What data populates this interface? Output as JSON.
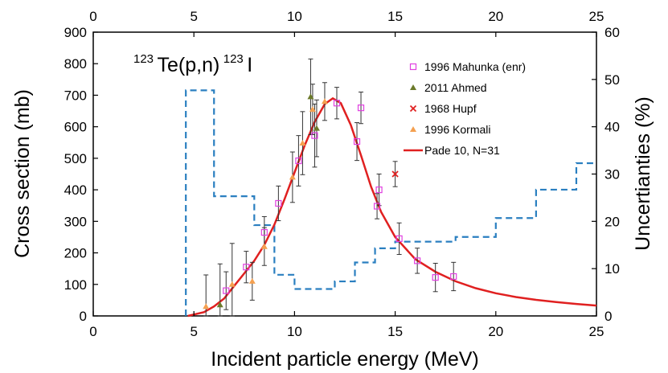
{
  "chart_data": {
    "type": "scatter",
    "title": "",
    "reaction_label": {
      "mass_target": "123",
      "target": "Te(p,n)",
      "mass_product": "123",
      "product": "I"
    },
    "xlabel": "Incident particle energy (MeV)",
    "ylabel": "Cross section (mb)",
    "y2label": "Uncertianties (%)",
    "xlim": [
      0,
      25
    ],
    "ylim": [
      0,
      900
    ],
    "y2lim": [
      0,
      60
    ],
    "xticks": [
      "0",
      "5",
      "10",
      "15",
      "20",
      "25"
    ],
    "yticks": [
      "0",
      "100",
      "200",
      "300",
      "400",
      "500",
      "600",
      "700",
      "800",
      "900"
    ],
    "y2ticks": [
      "0",
      "10",
      "20",
      "30",
      "40",
      "50",
      "60"
    ],
    "legend_position": "top-right",
    "series": [
      {
        "name": "1996 Mahunka (enr)",
        "marker": "open-square",
        "color": "#e040e0",
        "points": [
          {
            "x": 6.6,
            "y": 80,
            "err": 60
          },
          {
            "x": 7.6,
            "y": 155,
            "err": 50
          },
          {
            "x": 8.5,
            "y": 265,
            "err": 50
          },
          {
            "x": 9.2,
            "y": 357,
            "err": 55
          },
          {
            "x": 10.2,
            "y": 492,
            "err": 80
          },
          {
            "x": 11.0,
            "y": 572,
            "err": 100
          },
          {
            "x": 12.1,
            "y": 675,
            "err": 50
          },
          {
            "x": 13.1,
            "y": 553,
            "err": 60
          },
          {
            "x": 13.3,
            "y": 660,
            "err": 50
          },
          {
            "x": 14.2,
            "y": 400,
            "err": 50
          },
          {
            "x": 14.1,
            "y": 348,
            "err": 40
          },
          {
            "x": 15.2,
            "y": 245,
            "err": 50
          },
          {
            "x": 16.1,
            "y": 175,
            "err": 40
          },
          {
            "x": 17.0,
            "y": 122,
            "err": 45
          },
          {
            "x": 17.9,
            "y": 125,
            "err": 45
          }
        ]
      },
      {
        "name": "2011 Ahmed",
        "marker": "triangle",
        "color": "#6b7a2a",
        "points": [
          {
            "x": 6.3,
            "y": 35,
            "err": 130
          },
          {
            "x": 10.8,
            "y": 695,
            "err": 120
          },
          {
            "x": 11.1,
            "y": 595,
            "err": 90
          }
        ]
      },
      {
        "name": "1968 Hupf",
        "marker": "cross",
        "color": "#e02020",
        "points": [
          {
            "x": 15.0,
            "y": 450,
            "err": 40
          }
        ]
      },
      {
        "name": "1996 Kormali",
        "marker": "triangle",
        "color": "#f4a050",
        "points": [
          {
            "x": 5.6,
            "y": 30,
            "err": 100
          },
          {
            "x": 6.9,
            "y": 100,
            "err": 130
          },
          {
            "x": 7.9,
            "y": 110,
            "err": 60
          },
          {
            "x": 8.5,
            "y": 220,
            "err": 60
          },
          {
            "x": 9.9,
            "y": 440,
            "err": 80
          },
          {
            "x": 10.4,
            "y": 548,
            "err": 100
          },
          {
            "x": 10.9,
            "y": 655,
            "err": 80
          },
          {
            "x": 11.5,
            "y": 680,
            "err": 60
          }
        ]
      },
      {
        "name": "Pade 10, N=31",
        "marker": "line",
        "color": "#e02020",
        "points": [
          {
            "x": 4.7,
            "y": 0
          },
          {
            "x": 5.5,
            "y": 12
          },
          {
            "x": 6.0,
            "y": 30
          },
          {
            "x": 6.5,
            "y": 55
          },
          {
            "x": 7.0,
            "y": 95
          },
          {
            "x": 7.5,
            "y": 135
          },
          {
            "x": 8.0,
            "y": 175
          },
          {
            "x": 8.5,
            "y": 225
          },
          {
            "x": 9.0,
            "y": 290
          },
          {
            "x": 9.5,
            "y": 370
          },
          {
            "x": 10.0,
            "y": 455
          },
          {
            "x": 10.5,
            "y": 540
          },
          {
            "x": 11.0,
            "y": 615
          },
          {
            "x": 11.5,
            "y": 672
          },
          {
            "x": 11.9,
            "y": 690
          },
          {
            "x": 12.3,
            "y": 675
          },
          {
            "x": 12.8,
            "y": 605
          },
          {
            "x": 13.3,
            "y": 510
          },
          {
            "x": 13.8,
            "y": 410
          },
          {
            "x": 14.3,
            "y": 330
          },
          {
            "x": 15.0,
            "y": 250
          },
          {
            "x": 16.0,
            "y": 180
          },
          {
            "x": 17.0,
            "y": 140
          },
          {
            "x": 18.0,
            "y": 110
          },
          {
            "x": 19.0,
            "y": 88
          },
          {
            "x": 20.0,
            "y": 72
          },
          {
            "x": 21.0,
            "y": 60
          },
          {
            "x": 22.0,
            "y": 51
          },
          {
            "x": 23.0,
            "y": 44
          },
          {
            "x": 24.0,
            "y": 38
          },
          {
            "x": 25.0,
            "y": 33
          }
        ]
      }
    ],
    "uncertainty_series": {
      "name": "Uncertainties",
      "axis": "right",
      "style": "dashed-step",
      "color": "#2a7fc0",
      "steps": [
        {
          "x0": 4.6,
          "x1": 6.0,
          "y": 47.7
        },
        {
          "x0": 6.0,
          "x1": 8.0,
          "y": 25.3
        },
        {
          "x0": 8.0,
          "x1": 9.0,
          "y": 19.2
        },
        {
          "x0": 9.0,
          "x1": 10.0,
          "y": 8.7
        },
        {
          "x0": 10.0,
          "x1": 12.0,
          "y": 5.7
        },
        {
          "x0": 12.0,
          "x1": 13.0,
          "y": 7.3
        },
        {
          "x0": 13.0,
          "x1": 14.0,
          "y": 11.3
        },
        {
          "x0": 14.0,
          "x1": 15.0,
          "y": 14.3
        },
        {
          "x0": 15.0,
          "x1": 18.0,
          "y": 15.7
        },
        {
          "x0": 18.0,
          "x1": 20.0,
          "y": 16.7
        },
        {
          "x0": 20.0,
          "x1": 22.0,
          "y": 20.7
        },
        {
          "x0": 22.0,
          "x1": 24.0,
          "y": 26.7
        },
        {
          "x0": 24.0,
          "x1": 25.0,
          "y": 32.3
        }
      ]
    }
  }
}
